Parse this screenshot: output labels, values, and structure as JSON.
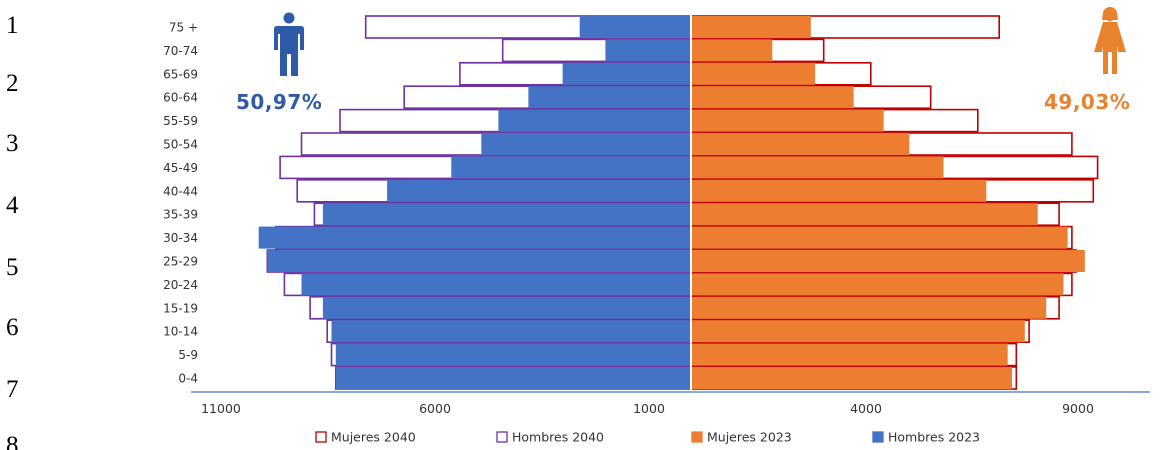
{
  "line_numbers": [
    "1",
    "2",
    "3",
    "4",
    "5",
    "6",
    "7",
    "8"
  ],
  "left_percentage": "50,97%",
  "right_percentage": "49,03%",
  "icons": {
    "left": "male-figure-icon",
    "right": "female-figure-icon"
  },
  "colors": {
    "hombres_2023": "#4472C4",
    "mujeres_2023": "#ED7D31",
    "hombres_2040_outline": "#7030A0",
    "mujeres_2040_outline": "#C00000",
    "left_percentage": "#2E5AA8",
    "right_percentage": "#E8822D"
  },
  "chart_data": {
    "type": "bar",
    "orientation": "horizontal-population-pyramid",
    "categories": [
      "75 +",
      "70-74",
      "65-69",
      "60-64",
      "55-59",
      "50-54",
      "45-49",
      "40-44",
      "35-39",
      "30-34",
      "25-29",
      "20-24",
      "15-19",
      "10-14",
      "5-9",
      "0-4"
    ],
    "series": [
      {
        "name": "Mujeres 2040",
        "side": "right",
        "style": "outline",
        "values": [
          7200,
          3100,
          4200,
          5600,
          6700,
          8900,
          9500,
          9400,
          8600,
          8900,
          9000,
          8900,
          8600,
          7900,
          7600,
          7600
        ]
      },
      {
        "name": "Hombres 2040",
        "side": "left",
        "style": "outline",
        "values": [
          7600,
          4400,
          5400,
          6700,
          8200,
          9100,
          9600,
          9200,
          8800,
          9700,
          9900,
          9500,
          8900,
          8500,
          8400,
          8300
        ]
      },
      {
        "name": "Mujeres 2023",
        "side": "right",
        "style": "fill",
        "values": [
          2800,
          1900,
          2900,
          3800,
          4500,
          5100,
          5900,
          6900,
          8100,
          8800,
          9200,
          8700,
          8300,
          7800,
          7400,
          7500
        ]
      },
      {
        "name": "Hombres 2023",
        "side": "left",
        "style": "fill",
        "values": [
          2600,
          2000,
          3000,
          3800,
          4500,
          4900,
          5600,
          7100,
          8600,
          10100,
          9900,
          9100,
          8600,
          8400,
          8300,
          8300
        ]
      }
    ],
    "x_tick_labels": [
      "11000",
      "6000",
      "1000",
      "4000",
      "9000"
    ],
    "legend": [
      "Mujeres 2040",
      "Hombres 2040",
      "Mujeres 2023",
      "Hombres 2023"
    ],
    "legend_position": "bottom",
    "grid": false
  }
}
